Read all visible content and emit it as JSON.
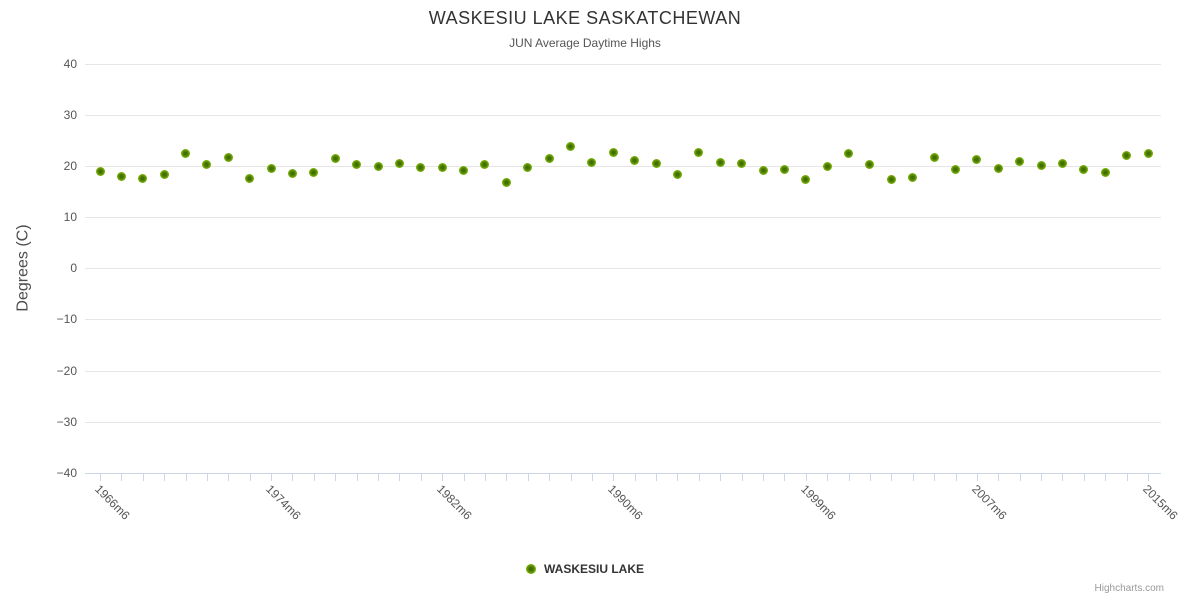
{
  "title": "WASKESIU LAKE SASKATCHEWAN",
  "subtitle": "JUN Average Daytime Highs",
  "y_axis": {
    "title": "Degrees (C)",
    "min": -40,
    "max": 40,
    "tick_interval": 10,
    "tick_labels": [
      "40",
      "30",
      "20",
      "10",
      "0",
      "−10",
      "−20",
      "−30",
      "−40"
    ]
  },
  "x_axis": {
    "tick_labels": [
      "1966m6",
      "1974m6",
      "1982m6",
      "1990m6",
      "1999m6",
      "2007m6",
      "2015m6"
    ],
    "label_indices": [
      0,
      8,
      16,
      24,
      33,
      41,
      49
    ]
  },
  "legend": {
    "series_name": "WASKESIU LAKE"
  },
  "credits_label": "Highcharts.com",
  "colors": {
    "marker_outer": "#85bd08",
    "marker_inner": "#3f6b02",
    "gridline": "#e6e6e6",
    "axis_line": "#ccd6eb",
    "title_text": "#333333",
    "subtitle_text": "#555555",
    "axis_label_text": "#555555"
  },
  "chart_data": {
    "type": "scatter",
    "title": "WASKESIU LAKE SASKATCHEWAN",
    "subtitle": "JUN Average Daytime Highs",
    "xlabel": "",
    "ylabel": "Degrees (C)",
    "ylim": [
      -40,
      40
    ],
    "y_tick_interval": 10,
    "grid": "horizontal",
    "legend_position": "bottom-center",
    "categories": [
      "1966m6",
      "1967m6",
      "1968m6",
      "1969m6",
      "1970m6",
      "1971m6",
      "1972m6",
      "1973m6",
      "1974m6",
      "1975m6",
      "1976m6",
      "1977m6",
      "1978m6",
      "1979m6",
      "1980m6",
      "1981m6",
      "1982m6",
      "1983m6",
      "1984m6",
      "1985m6",
      "1986m6",
      "1987m6",
      "1988m6",
      "1989m6",
      "1990m6",
      "1991m6",
      "1992m6",
      "1993m6",
      "1994m6",
      "1995m6",
      "1996m6",
      "1997m6",
      "1998m6",
      "1999m6",
      "2000m6",
      "2001m6",
      "2002m6",
      "2003m6",
      "2004m6",
      "2005m6",
      "2006m6",
      "2007m6",
      "2008m6",
      "2009m6",
      "2010m6",
      "2011m6",
      "2012m6",
      "2013m6",
      "2014m6",
      "2015m6"
    ],
    "series": [
      {
        "name": "WASKESIU LAKE",
        "values": [
          18.9,
          18.0,
          17.5,
          18.4,
          22.4,
          20.2,
          21.6,
          17.6,
          19.4,
          18.5,
          18.7,
          21.4,
          20.3,
          19.9,
          20.5,
          19.6,
          19.7,
          19.0,
          20.3,
          16.7,
          19.7,
          21.5,
          23.8,
          20.7,
          22.7,
          21.0,
          20.5,
          18.4,
          22.6,
          20.7,
          20.4,
          19.0,
          19.2,
          17.4,
          19.8,
          22.4,
          20.3,
          17.4,
          17.8,
          21.6,
          19.3,
          21.3,
          19.5,
          20.8,
          20.0,
          20.5,
          19.3,
          18.7,
          22.1,
          22.5
        ]
      }
    ]
  }
}
